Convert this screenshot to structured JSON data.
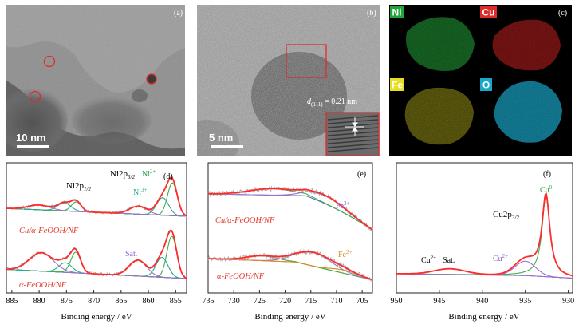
{
  "figure": {
    "panels": {
      "a": {
        "label": "(a)",
        "scale_bar": "10 nm"
      },
      "b": {
        "label": "(b)",
        "scale_bar": "5 nm",
        "d_spacing": "d(111) = 0.21 nm",
        "d_symbol": "d",
        "d_sub": "(111)",
        "d_value": " = 0.21 nm"
      },
      "c": {
        "label": "(c)",
        "elements": [
          {
            "name": "Ni",
            "color": "#22a33a"
          },
          {
            "name": "Cu",
            "color": "#e02b2b"
          },
          {
            "name": "Fe",
            "color": "#e6e020"
          },
          {
            "name": "O",
            "color": "#16a9c9"
          }
        ]
      }
    },
    "colors": {
      "raw": "#a9a9a9",
      "fit": "#ff2b2b",
      "teal": "#2aa88a",
      "green": "#3bb04a",
      "purple": "#9b72c9",
      "blue": "#5b6ec9",
      "orange": "#d98a2a",
      "label_red": "#e43a2b",
      "label_purple": "#8f5fcf",
      "label_green": "#2ea24b",
      "label_orange": "#e08a2a"
    }
  },
  "chart_data": [
    {
      "panel": "(d)",
      "type": "line",
      "xlabel": "Binding energy / eV",
      "xlim": [
        886,
        853
      ],
      "x_reversed": true,
      "xticks": [
        "885",
        "880",
        "875",
        "870",
        "865",
        "860",
        "855"
      ],
      "annotations": [
        "Ni2p1/2",
        "Ni2p3/2",
        "Ni2+",
        "Ni3+",
        "Sat."
      ],
      "ann_parts": {
        "ni12_main": "Ni2p",
        "ni12_sub": "1/2",
        "ni32_main": "Ni2p",
        "ni32_sub": "3/2",
        "ni2_main": "Ni",
        "ni2_sup": "2+",
        "ni3_main": "Ni",
        "ni3_sup": "3+",
        "sat": "Sat."
      },
      "series": [
        {
          "name": "Cu/α-FeOOH/NF",
          "peaks_eV": [
            855.6,
            857.4,
            861.8,
            873.2,
            875.4,
            880.0
          ],
          "fit_peak_eV": 855.6
        },
        {
          "name": "α-FeOOH/NF",
          "peaks_eV": [
            855.7,
            857.5,
            861.9,
            873.3,
            875.2,
            879.6
          ],
          "fit_peak_eV": 855.7
        }
      ]
    },
    {
      "panel": "(e)",
      "type": "line",
      "xlabel": "Binding energy / eV",
      "xlim": [
        735,
        703
      ],
      "x_reversed": true,
      "xticks": [
        "735",
        "730",
        "725",
        "720",
        "715",
        "710",
        "705"
      ],
      "annotations": [
        "Fe3+",
        "Fe2+"
      ],
      "ann_parts": {
        "fe3_main": "Fe",
        "fe3_sup": "3+",
        "fe2_main": "Fe",
        "fe2_sup": "2+"
      },
      "series": [
        {
          "name": "Cu/α-FeOOH/NF",
          "peaks_eV": [
            722.5,
            712.0
          ]
        },
        {
          "name": "α-FeOOH/NF",
          "peaks_eV": [
            724.5,
            714.5,
            708.5
          ]
        }
      ]
    },
    {
      "panel": "(f)",
      "type": "line",
      "xlabel": "Binding energy / eV",
      "xlim": [
        950,
        929.5
      ],
      "x_reversed": true,
      "xticks": [
        "950",
        "945",
        "940",
        "935",
        "930"
      ],
      "annotations": [
        "Cu2p3/2",
        "Cu0",
        "Cu2+",
        "Cu2+ Sat."
      ],
      "ann_parts": {
        "cu_main": "Cu2p",
        "cu_sub": "3/2",
        "cu0_main": "Cu",
        "cu0_sup": "0",
        "cu2_main": "Cu",
        "cu2_sup": "2+",
        "sat": "Sat."
      },
      "series": [
        {
          "name": "Cu 2p",
          "peaks_eV": [
            932.6,
            935.0,
            943.8
          ]
        }
      ]
    }
  ]
}
